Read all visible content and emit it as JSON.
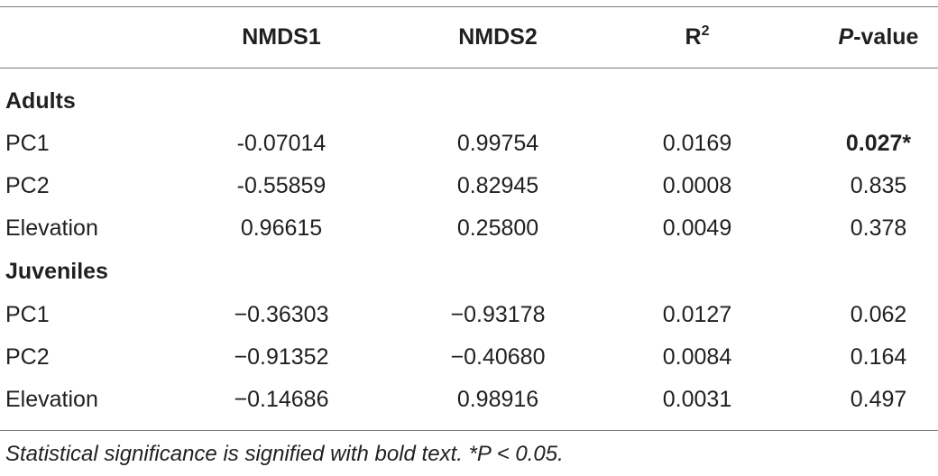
{
  "header": {
    "col0": "",
    "col1": "NMDS1",
    "col2": "NMDS2",
    "col3_base": "R",
    "col3_sup": "2",
    "col4_italic": "P",
    "col4_rest": "-value"
  },
  "groups": [
    {
      "label": "Adults",
      "rows": [
        {
          "name": "PC1",
          "nmds1": "-0.07014",
          "nmds2": "0.99754",
          "r2": "0.0169",
          "p": "0.027*",
          "p_bold": true
        },
        {
          "name": "PC2",
          "nmds1": "-0.55859",
          "nmds2": "0.82945",
          "r2": "0.0008",
          "p": "0.835",
          "p_bold": false
        },
        {
          "name": "Elevation",
          "nmds1": "0.96615",
          "nmds2": "0.25800",
          "r2": "0.0049",
          "p": "0.378",
          "p_bold": false
        }
      ]
    },
    {
      "label": "Juveniles",
      "rows": [
        {
          "name": "PC1",
          "nmds1": "−0.36303",
          "nmds2": "−0.93178",
          "r2": "0.0127",
          "p": "0.062",
          "p_bold": false
        },
        {
          "name": "PC2",
          "nmds1": "−0.91352",
          "nmds2": "−0.40680",
          "r2": "0.0084",
          "p": "0.164",
          "p_bold": false
        },
        {
          "name": "Elevation",
          "nmds1": "−0.14686",
          "nmds2": "0.98916",
          "r2": "0.0031",
          "p": "0.497",
          "p_bold": false
        }
      ]
    }
  ],
  "footnote": "Statistical significance is signified with bold text. *P < 0.05."
}
